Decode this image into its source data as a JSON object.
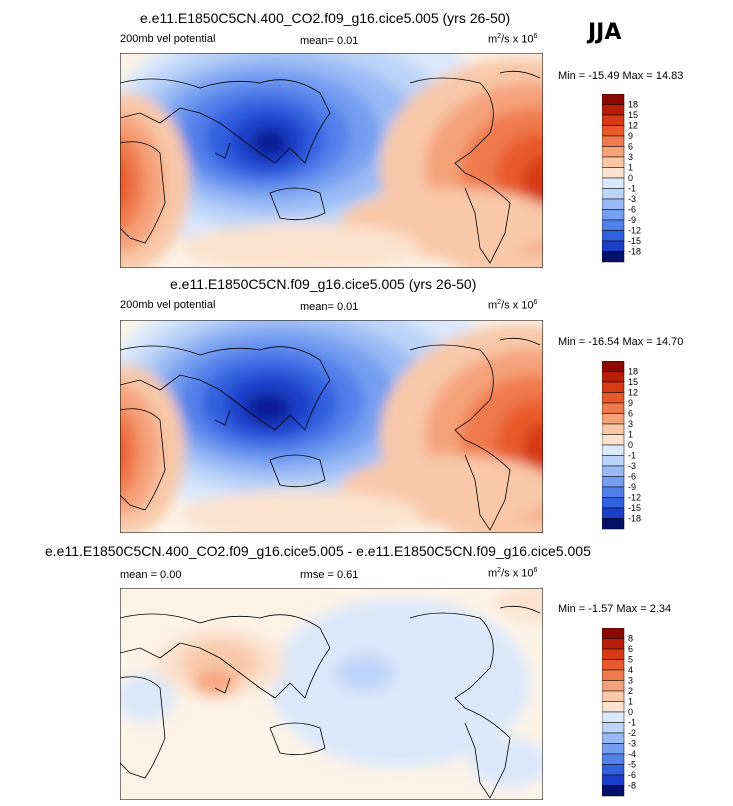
{
  "season": "JJA",
  "colors": {
    "pos": [
      "#fbe3cf",
      "#f8c8a8",
      "#f5a27a",
      "#ef7a4e",
      "#e85a2b",
      "#d63a16",
      "#b81d08",
      "#8a0a00"
    ],
    "neg": [
      "#dbe8fb",
      "#bcd4f8",
      "#99baf4",
      "#759ef0",
      "#5280ea",
      "#3261e0",
      "#1c3fc9",
      "#0b1e96",
      "#03116a"
    ],
    "zero": "#fdf3e7"
  },
  "panels": [
    {
      "title": "e.e11.E1850C5CN.400_CO2.f09_g16.cice5.005 (yrs 26-50)",
      "left_label": "200mb vel potential",
      "mid_label": "mean=   0.01",
      "units": "m2/s x 106",
      "minmax": "Min = -15.49 Max =  14.83",
      "colorbar": [
        "18",
        "15",
        "12",
        "9",
        "6",
        "3",
        "1",
        "0",
        "-1",
        "-3",
        "-6",
        "-9",
        "-12",
        "-15",
        "-18"
      ]
    },
    {
      "title": "e.e11.E1850C5CN.f09_g16.cice5.005 (yrs 26-50)",
      "left_label": "200mb vel potential",
      "mid_label": "mean=   0.01",
      "units": "m2/s x 106",
      "minmax": "Min = -16.54 Max =  14.70",
      "colorbar": [
        "18",
        "15",
        "12",
        "9",
        "6",
        "3",
        "1",
        "0",
        "-1",
        "-3",
        "-6",
        "-9",
        "-12",
        "-15",
        "-18"
      ]
    },
    {
      "title": "e.e11.E1850C5CN.400_CO2.f09_g16.cice5.005 - e.e11.E1850C5CN.f09_g16.cice5.005",
      "left_label": "mean =   0.00",
      "mid_label": "rmse =   0.61",
      "units": "m2/s x 106",
      "minmax": "Min =  -1.57 Max =   2.34",
      "colorbar": [
        "8",
        "6",
        "5",
        "4",
        "3",
        "2",
        "1",
        "0",
        "-1",
        "-2",
        "-3",
        "-4",
        "-5",
        "-6",
        "-8"
      ]
    }
  ]
}
